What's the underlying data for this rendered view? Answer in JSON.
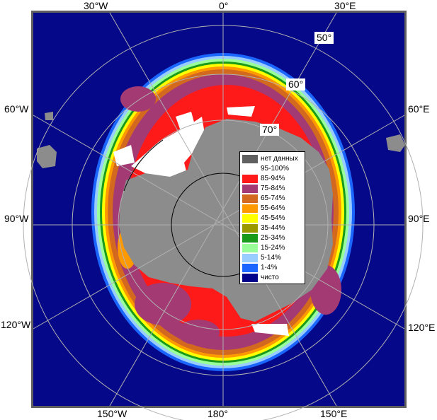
{
  "lon_labels": {
    "top_w30": "30°W",
    "top_0": "0°",
    "top_e30": "30°E",
    "left_60w": "60°W",
    "right_60e": "60°E",
    "left_90w": "90°W",
    "right_90e": "90°E",
    "left_120w": "120°W",
    "right_120e": "120°E",
    "bottom_150w": "150°W",
    "bottom_180": "180°",
    "bottom_150e": "150°E"
  },
  "lat_labels": {
    "lat50": "50°",
    "lat60": "60°",
    "lat70": "70°"
  },
  "legend": {
    "items": [
      {
        "label": "нет данных",
        "color": "#606060"
      },
      {
        "label": "95-100%",
        "color": "#ffffff"
      },
      {
        "label": "85-94%",
        "color": "#ff1a1a"
      },
      {
        "label": "75-84%",
        "color": "#a33a74"
      },
      {
        "label": "65-74%",
        "color": "#d2691e"
      },
      {
        "label": "55-64%",
        "color": "#ff9900"
      },
      {
        "label": "45-54%",
        "color": "#ffff00"
      },
      {
        "label": "35-44%",
        "color": "#9a9a00"
      },
      {
        "label": "25-34%",
        "color": "#1a9a1a"
      },
      {
        "label": "15-24%",
        "color": "#99ff99"
      },
      {
        "label": "5-14%",
        "color": "#99ccff"
      },
      {
        "label": "1-4%",
        "color": "#1a66ff"
      },
      {
        "label": "чисто",
        "color": "#00008b"
      }
    ]
  },
  "colors": {
    "ocean": "#06088a",
    "land": "#8c8c8c",
    "frame": "#606060",
    "grid": "#b0b0b0"
  }
}
